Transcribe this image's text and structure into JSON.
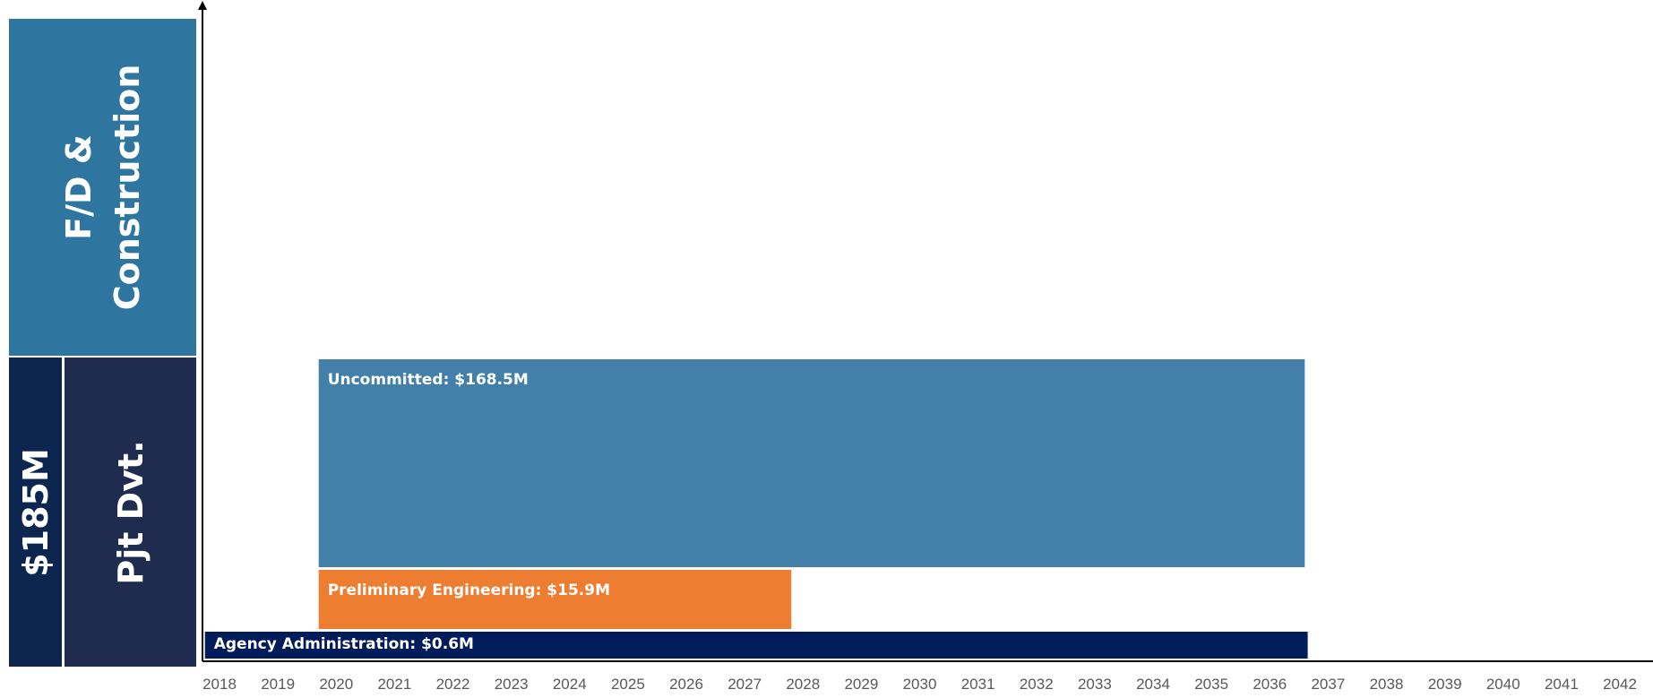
{
  "side_panel": {
    "fd_construction_label_line1": "F/D &",
    "fd_construction_label_line2": "Construction",
    "total_label": "$185M",
    "pjt_dvt_label": "Pjt Dvt."
  },
  "colors": {
    "fd_block": "#2e75a0",
    "total_block": "#0c2650",
    "pjt_block": "#1f2c4f",
    "uncommitted": "#4280aa",
    "preliminary": "#ed7d31",
    "agency": "#001c5a",
    "axis": "#000000",
    "tick_text": "#595959"
  },
  "chart_data": {
    "type": "bar",
    "orientation": "horizontal-timeline",
    "x_axis": {
      "ticks": [
        "2018",
        "2019",
        "2020",
        "2021",
        "2022",
        "2023",
        "2024",
        "2025",
        "2026",
        "2027",
        "2028",
        "2029",
        "2030",
        "2031",
        "2032",
        "2033",
        "2034",
        "2035",
        "2036",
        "2037",
        "2038",
        "2039",
        "2040",
        "2041",
        "2042"
      ],
      "range": [
        2018,
        2042
      ]
    },
    "bars": [
      {
        "label": "Uncommitted: $168.5M",
        "value_millions": 168.5,
        "start": 2019.7,
        "end": 2036.6,
        "color_key": "uncommitted"
      },
      {
        "label": "Preliminary Engineering: $15.9M",
        "value_millions": 15.9,
        "start": 2019.7,
        "end": 2027.8,
        "color_key": "preliminary"
      },
      {
        "label": "Agency Administration: $0.6M",
        "value_millions": 0.6,
        "start": 2017.75,
        "end": 2036.65,
        "color_key": "agency"
      }
    ],
    "title": "",
    "xlabel": "",
    "ylabel": "",
    "grid": false
  }
}
